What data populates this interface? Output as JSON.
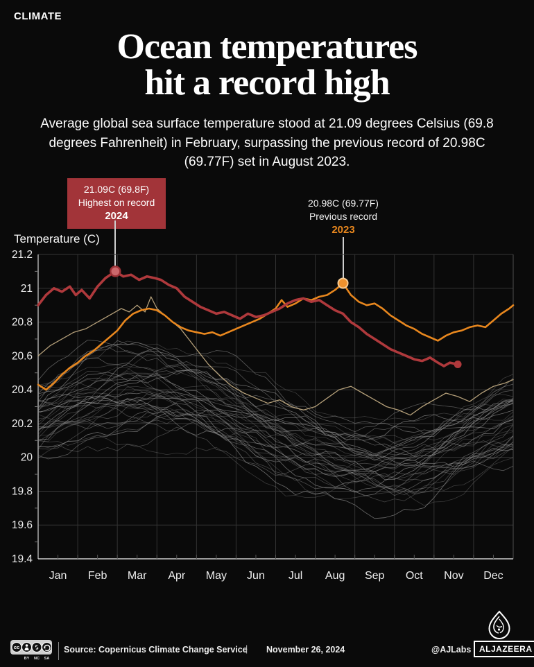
{
  "kicker": "CLIMATE",
  "title": {
    "line1": "Ocean temperatures",
    "line2": "hit a record high"
  },
  "subtitle": "Average global sea surface temperature stood at 21.09 degrees Celsius (69.8 degrees Fahrenheit) in February, surpassing the previous record of 20.98C (69.77F) set in August 2023.",
  "annotations": {
    "record2024": {
      "line1": "21.09C (69.8F)",
      "line2": "Highest on record",
      "year": "2024",
      "box_color": "#a23439",
      "text_color": "#ffffff"
    },
    "record2023": {
      "line1": "20.98C (69.77F)",
      "line2": "Previous record",
      "year": "2023",
      "year_color": "#e8871e"
    }
  },
  "chart_data": {
    "type": "line",
    "ylabel": "Temperature (C)",
    "ylim": [
      19.4,
      21.2
    ],
    "yticks": [
      "21.2",
      "21",
      "20.8",
      "20.6",
      "20.4",
      "20.2",
      "20",
      "19.8",
      "19.6",
      "19.4"
    ],
    "xticklabels": [
      "Jan",
      "Feb",
      "Mar",
      "Apr",
      "May",
      "Jun",
      "Jul",
      "Aug",
      "Sep",
      "Oct",
      "Nov",
      "Dec"
    ],
    "grid": true,
    "colors": {
      "grid": "#353535",
      "axis": "#b5b5b5",
      "tick_text": "#eeeeee"
    },
    "series": [
      {
        "name": "historical-highlight",
        "color": "#c6af85",
        "width": 1.3,
        "opacity": 0.9,
        "x": [
          0,
          0.3,
          0.6,
          0.9,
          1.2,
          1.5,
          1.8,
          2.1,
          2.3,
          2.5,
          2.7,
          2.85,
          3.0,
          3.2,
          3.4,
          3.6,
          3.8,
          4.0,
          4.3,
          4.6,
          4.9,
          5.2,
          5.5,
          5.8,
          6.1,
          6.4,
          6.7,
          7.0,
          7.3,
          7.6,
          7.9,
          8.2,
          8.5,
          8.8,
          9.1,
          9.4,
          9.7,
          10.0,
          10.3,
          10.6,
          10.9,
          11.2,
          11.5,
          11.8,
          12.0
        ],
        "y": [
          20.6,
          20.66,
          20.7,
          20.74,
          20.76,
          20.8,
          20.84,
          20.88,
          20.86,
          20.9,
          20.86,
          20.95,
          20.88,
          20.84,
          20.8,
          20.76,
          20.7,
          20.64,
          20.55,
          20.48,
          20.42,
          20.38,
          20.35,
          20.32,
          20.34,
          20.3,
          20.28,
          20.3,
          20.35,
          20.4,
          20.42,
          20.38,
          20.34,
          20.3,
          20.28,
          20.25,
          20.3,
          20.34,
          20.38,
          20.36,
          20.33,
          20.38,
          20.42,
          20.44,
          20.46
        ]
      },
      {
        "name": "2023",
        "color": "#e8871e",
        "width": 2.6,
        "opacity": 1,
        "x": [
          0,
          0.2,
          0.4,
          0.6,
          0.8,
          1.0,
          1.2,
          1.4,
          1.6,
          1.8,
          2.0,
          2.2,
          2.4,
          2.6,
          2.8,
          3.0,
          3.2,
          3.4,
          3.6,
          3.8,
          4.0,
          4.2,
          4.4,
          4.6,
          4.8,
          5.0,
          5.2,
          5.4,
          5.6,
          5.8,
          6.0,
          6.15,
          6.3,
          6.5,
          6.7,
          6.9,
          7.1,
          7.3,
          7.5,
          7.7,
          7.9,
          8.1,
          8.3,
          8.5,
          8.7,
          8.9,
          9.1,
          9.3,
          9.5,
          9.7,
          9.9,
          10.1,
          10.3,
          10.5,
          10.7,
          10.9,
          11.1,
          11.3,
          11.5,
          11.7,
          11.9,
          12.0
        ],
        "y": [
          20.43,
          20.4,
          20.44,
          20.49,
          20.53,
          20.56,
          20.6,
          20.63,
          20.67,
          20.71,
          20.75,
          20.81,
          20.85,
          20.87,
          20.88,
          20.87,
          20.84,
          20.8,
          20.77,
          20.75,
          20.74,
          20.73,
          20.74,
          20.72,
          20.74,
          20.76,
          20.78,
          20.8,
          20.82,
          20.85,
          20.88,
          20.93,
          20.89,
          20.91,
          20.94,
          20.93,
          20.95,
          20.96,
          20.99,
          21.03,
          20.96,
          20.92,
          20.9,
          20.91,
          20.88,
          20.84,
          20.81,
          20.78,
          20.76,
          20.73,
          20.71,
          20.69,
          20.72,
          20.74,
          20.75,
          20.77,
          20.78,
          20.77,
          20.81,
          20.85,
          20.88,
          20.9
        ]
      },
      {
        "name": "2024",
        "color": "#af393c",
        "width": 3.6,
        "opacity": 1,
        "x": [
          0,
          0.2,
          0.4,
          0.6,
          0.8,
          0.95,
          1.1,
          1.3,
          1.5,
          1.7,
          1.95,
          2.15,
          2.35,
          2.55,
          2.75,
          2.95,
          3.1,
          3.3,
          3.5,
          3.7,
          3.9,
          4.1,
          4.3,
          4.5,
          4.7,
          4.9,
          5.1,
          5.3,
          5.5,
          5.7,
          5.9,
          6.1,
          6.3,
          6.5,
          6.7,
          6.9,
          7.1,
          7.3,
          7.5,
          7.7,
          7.9,
          8.1,
          8.3,
          8.5,
          8.7,
          8.9,
          9.1,
          9.3,
          9.5,
          9.7,
          9.9,
          10.1,
          10.25,
          10.4,
          10.6
        ],
        "y": [
          20.9,
          20.96,
          21.0,
          20.98,
          21.01,
          20.96,
          20.99,
          20.94,
          21.01,
          21.06,
          21.1,
          21.07,
          21.08,
          21.05,
          21.07,
          21.06,
          21.05,
          21.02,
          21.0,
          20.95,
          20.92,
          20.89,
          20.87,
          20.85,
          20.86,
          20.84,
          20.82,
          20.85,
          20.83,
          20.84,
          20.86,
          20.88,
          20.91,
          20.93,
          20.94,
          20.92,
          20.93,
          20.9,
          20.87,
          20.85,
          20.8,
          20.77,
          20.73,
          20.7,
          20.67,
          20.64,
          20.62,
          20.6,
          20.58,
          20.57,
          20.59,
          20.56,
          20.54,
          20.56,
          20.55
        ]
      }
    ],
    "markers": [
      {
        "name": "record-2024-point",
        "x": 1.95,
        "y": 21.1,
        "r": 7,
        "fill": "#cb686c",
        "stroke": "#9c3136",
        "stroke_width": 2.5
      },
      {
        "name": "record-2023-point",
        "x": 7.7,
        "y": 21.03,
        "r": 7,
        "fill": "#f0922e",
        "stroke": "#f8cd96",
        "stroke_width": 2
      },
      {
        "name": "series-2024-end-point",
        "x": 10.6,
        "y": 20.55,
        "r": 5.5,
        "fill": "#af393c",
        "stroke": "none",
        "stroke_width": 0
      }
    ],
    "historical_ensemble": {
      "note": "thin grey traces of earlier years, approximate",
      "count": 40,
      "color": "#909090",
      "seed": 7,
      "base_range": [
        19.95,
        20.42
      ],
      "seasonal_amplitude": 0.21,
      "noise": 0.035,
      "opacity_range": [
        0.3,
        0.75
      ]
    }
  },
  "footer": {
    "license": "CC BY NC SA",
    "source_text": "Source:  Copernicus Climate Change Service",
    "separator": "|",
    "date": "November 26, 2024",
    "credit": "@AJLabs",
    "brand": "ALJAZEERA"
  }
}
